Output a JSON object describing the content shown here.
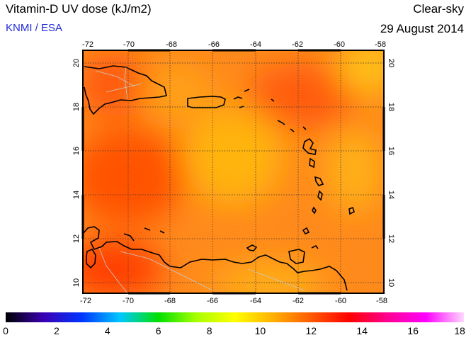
{
  "header": {
    "title": "Vitamin-D UV dose (kJ/m2)",
    "subtitle": "KNMI / ESA",
    "condition": "Clear-sky",
    "date": "29 August 2014"
  },
  "map": {
    "region": "Caribbean",
    "lon_ticks": [
      "-72",
      "-70",
      "-68",
      "-66",
      "-64",
      "-62",
      "-60",
      "-58"
    ],
    "lat_ticks": [
      "10",
      "12",
      "14",
      "16",
      "18",
      "20"
    ],
    "lon_range": [
      -72,
      -58
    ],
    "lat_range": [
      9.5,
      20.5
    ],
    "grid": "dotted"
  },
  "colorbar": {
    "labels": [
      "0",
      "2",
      "4",
      "6",
      "8",
      "10",
      "12",
      "14",
      "16",
      "18"
    ],
    "range": [
      0,
      18
    ],
    "colors": [
      "#000000",
      "#3a00b4",
      "#0036ff",
      "#00c8ff",
      "#00e000",
      "#a8ff00",
      "#ffff00",
      "#ffb000",
      "#ff5a00",
      "#ff0000",
      "#ff0090",
      "#ff00ff",
      "#ffd8ff"
    ]
  }
}
